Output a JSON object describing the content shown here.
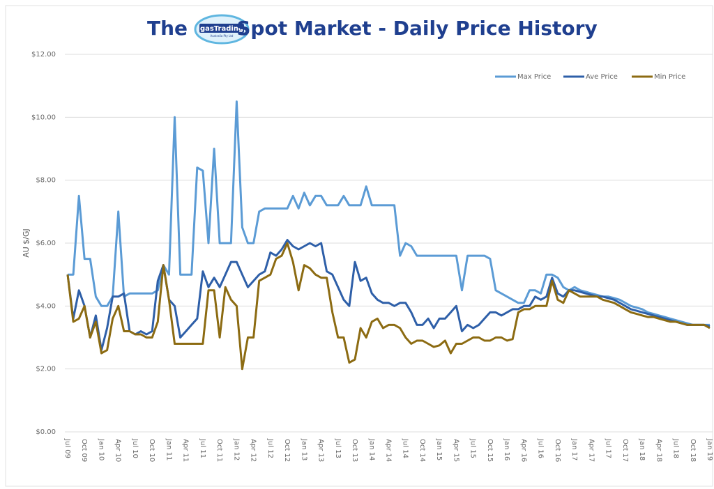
{
  "chart_data": {
    "type": "line",
    "title_prefix": "The",
    "logo_text": "gasTrading",
    "logo_subtext": "Australia Pty Ltd",
    "title": "Spot Market - Daily Price History",
    "y_label": "AU $/GJ",
    "categories": [
      "Jul 09",
      null,
      null,
      "Oct 09",
      null,
      null,
      "Jan 10",
      null,
      null,
      "Apr 10",
      null,
      null,
      "Jul 10",
      null,
      null,
      "Oct 10",
      null,
      null,
      "Jan 11",
      null,
      null,
      "Apr 11",
      null,
      null,
      "Jul 11",
      null,
      null,
      "Oct 11",
      null,
      null,
      "Jan 12",
      null,
      null,
      "Apr 12",
      null,
      null,
      "Jul 12",
      null,
      null,
      "Oct 12",
      null,
      null,
      "Jan 13",
      null,
      null,
      "Apr 13",
      null,
      null,
      "Jul 13",
      null,
      null,
      "Oct 13",
      null,
      null,
      "Jan 14",
      null,
      null,
      "Apr 14",
      null,
      null,
      "Jul 14",
      null,
      null,
      "Oct 14",
      null,
      null,
      "Jan 15",
      null,
      null,
      "Apr 15",
      null,
      null,
      "Jul 15",
      null,
      null,
      "Oct 15",
      null,
      null,
      "Jan 16",
      null,
      null,
      "Apr 16",
      null,
      null,
      "Jul 16",
      null,
      null,
      "Oct 16",
      null,
      null,
      "Jan 17",
      null,
      null,
      "Apr 17",
      null,
      null,
      "Jul 17",
      null,
      null,
      "Oct 17",
      null,
      null,
      "Jan 18",
      null,
      null,
      "Apr 18",
      null,
      null,
      "Jul 18",
      null,
      null,
      "Oct 18",
      null,
      null,
      "Jan 19"
    ],
    "series": [
      {
        "name": "Max Price",
        "color": "#5b9bd5",
        "values": [
          5.0,
          5.0,
          7.5,
          5.5,
          5.5,
          4.3,
          4.0,
          4.0,
          4.3,
          7.0,
          4.3,
          4.4,
          4.4,
          4.4,
          4.4,
          4.4,
          4.5,
          5.3,
          5.0,
          10.0,
          5.0,
          5.0,
          5.0,
          8.4,
          8.3,
          6.0,
          9.0,
          6.0,
          6.0,
          6.0,
          10.5,
          6.5,
          6.0,
          6.0,
          7.0,
          7.1,
          7.1,
          7.1,
          7.1,
          7.1,
          7.5,
          7.1,
          7.6,
          7.2,
          7.5,
          7.5,
          7.2,
          7.2,
          7.2,
          7.5,
          7.2,
          7.2,
          7.2,
          7.8,
          7.2,
          7.2,
          7.2,
          7.2,
          7.2,
          5.6,
          6.0,
          5.9,
          5.6,
          5.6,
          5.6,
          5.6,
          5.6,
          5.6,
          5.6,
          5.6,
          4.5,
          5.6,
          5.6,
          5.6,
          5.6,
          5.5,
          4.5,
          4.4,
          4.3,
          4.2,
          4.1,
          4.1,
          4.5,
          4.5,
          4.4,
          5.0,
          5.0,
          4.9,
          4.6,
          4.5,
          4.6,
          4.5,
          4.45,
          4.4,
          4.35,
          4.3,
          4.3,
          4.25,
          4.2,
          4.1,
          4.0,
          3.95,
          3.9,
          3.8,
          3.75,
          3.7,
          3.65,
          3.6,
          3.55,
          3.5,
          3.45,
          3.4,
          3.4,
          3.4,
          3.4
        ]
      },
      {
        "name": "Ave Price",
        "color": "#2e5fa8",
        "values": [
          5.0,
          3.6,
          4.5,
          4.0,
          3.0,
          3.7,
          2.6,
          3.3,
          4.3,
          4.3,
          4.4,
          3.2,
          3.1,
          3.2,
          3.1,
          3.2,
          4.8,
          5.3,
          4.2,
          4.0,
          3.0,
          3.2,
          3.4,
          3.6,
          5.1,
          4.6,
          4.9,
          4.6,
          5.0,
          5.4,
          5.4,
          5.0,
          4.6,
          4.8,
          5.0,
          5.1,
          5.7,
          5.6,
          5.8,
          6.1,
          5.9,
          5.8,
          5.9,
          6.0,
          5.9,
          6.0,
          5.1,
          5.0,
          4.6,
          4.2,
          4.0,
          5.4,
          4.8,
          4.9,
          4.4,
          4.2,
          4.1,
          4.1,
          4.0,
          4.1,
          4.1,
          3.8,
          3.4,
          3.4,
          3.6,
          3.3,
          3.6,
          3.6,
          3.8,
          4.0,
          3.2,
          3.4,
          3.3,
          3.4,
          3.6,
          3.8,
          3.8,
          3.7,
          3.8,
          3.9,
          3.9,
          4.0,
          4.0,
          4.3,
          4.2,
          4.3,
          4.9,
          4.4,
          4.3,
          4.5,
          4.5,
          4.45,
          4.4,
          4.35,
          4.3,
          4.3,
          4.25,
          4.2,
          4.1,
          4.0,
          3.9,
          3.85,
          3.8,
          3.75,
          3.7,
          3.65,
          3.6,
          3.55,
          3.5,
          3.45,
          3.4,
          3.4,
          3.4,
          3.4,
          3.35
        ]
      },
      {
        "name": "Min Price",
        "color": "#8c6b12",
        "values": [
          5.0,
          3.5,
          3.6,
          4.0,
          3.0,
          3.5,
          2.5,
          2.6,
          3.6,
          4.0,
          3.2,
          3.2,
          3.1,
          3.1,
          3.0,
          3.0,
          3.5,
          5.3,
          4.2,
          2.8,
          2.8,
          2.8,
          2.8,
          2.8,
          2.8,
          4.5,
          4.5,
          3.0,
          4.6,
          4.2,
          4.0,
          2.0,
          3.0,
          3.0,
          4.8,
          4.9,
          5.0,
          5.5,
          5.6,
          6.0,
          5.4,
          4.5,
          5.3,
          5.2,
          5.0,
          4.9,
          4.9,
          3.8,
          3.0,
          3.0,
          2.2,
          2.3,
          3.3,
          3.0,
          3.5,
          3.6,
          3.3,
          3.4,
          3.4,
          3.3,
          3.0,
          2.8,
          2.9,
          2.9,
          2.8,
          2.7,
          2.75,
          2.9,
          2.5,
          2.8,
          2.8,
          2.9,
          3.0,
          3.0,
          2.9,
          2.9,
          3.0,
          3.0,
          2.9,
          2.95,
          3.8,
          3.9,
          3.9,
          4.0,
          4.0,
          4.0,
          4.8,
          4.2,
          4.1,
          4.5,
          4.4,
          4.3,
          4.3,
          4.3,
          4.3,
          4.2,
          4.15,
          4.1,
          4.0,
          3.9,
          3.8,
          3.75,
          3.7,
          3.65,
          3.65,
          3.6,
          3.55,
          3.5,
          3.5,
          3.45,
          3.4,
          3.4,
          3.4,
          3.4,
          3.3
        ]
      }
    ],
    "ylim": [
      0,
      12
    ],
    "yticks": [
      {
        "value": 0,
        "label": "$0.00"
      },
      {
        "value": 2,
        "label": "$2.00"
      },
      {
        "value": 4,
        "label": "$4.00"
      },
      {
        "value": 6,
        "label": "$6.00"
      },
      {
        "value": 8,
        "label": "$8.00"
      },
      {
        "value": 10,
        "label": "$10.00"
      },
      {
        "value": 12,
        "label": "$12.00"
      }
    ],
    "grid": true,
    "legend": "top-right"
  }
}
